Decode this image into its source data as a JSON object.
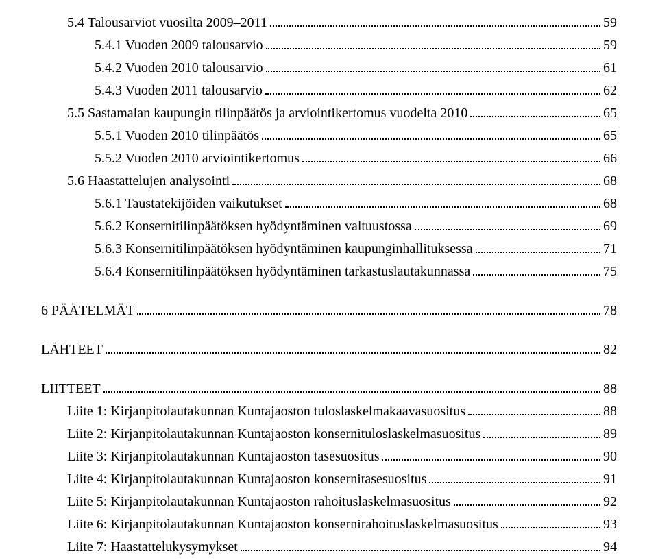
{
  "entries": [
    {
      "label": "5.4 Talousarviot vuosilta 2009–2011",
      "page": "59",
      "indent": 1
    },
    {
      "label": "5.4.1 Vuoden 2009 talousarvio",
      "page": "59",
      "indent": 2
    },
    {
      "label": "5.4.2 Vuoden 2010 talousarvio",
      "page": "61",
      "indent": 2
    },
    {
      "label": "5.4.3 Vuoden 2011 talousarvio",
      "page": "62",
      "indent": 2
    },
    {
      "label": "5.5 Sastamalan kaupungin tilinpäätös ja arviointikertomus vuodelta 2010",
      "page": "65",
      "indent": 1
    },
    {
      "label": "5.5.1 Vuoden 2010 tilinpäätös",
      "page": "65",
      "indent": 2
    },
    {
      "label": "5.5.2 Vuoden 2010 arviointikertomus",
      "page": "66",
      "indent": 2
    },
    {
      "label": "5.6 Haastattelujen analysointi",
      "page": "68",
      "indent": 1
    },
    {
      "label": "5.6.1 Taustatekijöiden vaikutukset",
      "page": "68",
      "indent": 2
    },
    {
      "label": "5.6.2 Konsernitilinpäätöksen hyödyntäminen valtuustossa",
      "page": "69",
      "indent": 2
    },
    {
      "label": "5.6.3 Konsernitilinpäätöksen hyödyntäminen kaupunginhallituksessa",
      "page": "71",
      "indent": 2
    },
    {
      "label": "5.6.4 Konsernitilinpäätöksen hyödyntäminen tarkastuslautakunnassa",
      "page": "75",
      "indent": 2
    },
    {
      "label": "6 PÄÄTELMÄT",
      "page": "78",
      "indent": 0,
      "gap": true
    },
    {
      "label": "LÄHTEET",
      "page": "82",
      "indent": 0,
      "gap": true
    },
    {
      "label": "LIITTEET",
      "page": "88",
      "indent": 0,
      "gap": true
    },
    {
      "label": "Liite 1: Kirjanpitolautakunnan Kuntajaoston tuloslaskelmakaavasuositus",
      "page": "88",
      "indent": 1
    },
    {
      "label": "Liite 2: Kirjanpitolautakunnan Kuntajaoston konsernituloslaskelmasuositus",
      "page": "89",
      "indent": 1
    },
    {
      "label": "Liite 3: Kirjanpitolautakunnan Kuntajaoston tasesuositus",
      "page": "90",
      "indent": 1
    },
    {
      "label": "Liite 4: Kirjanpitolautakunnan Kuntajaoston konsernitasesuositus",
      "page": "91",
      "indent": 1
    },
    {
      "label": "Liite 5: Kirjanpitolautakunnan Kuntajaoston rahoituslaskelmasuositus",
      "page": "92",
      "indent": 1
    },
    {
      "label": "Liite 6: Kirjanpitolautakunnan Kuntajaoston konsernirahoituslaskelmasuositus",
      "page": "93",
      "indent": 1
    },
    {
      "label": "Liite 7: Haastattelukysymykset",
      "page": "94",
      "indent": 1
    }
  ]
}
